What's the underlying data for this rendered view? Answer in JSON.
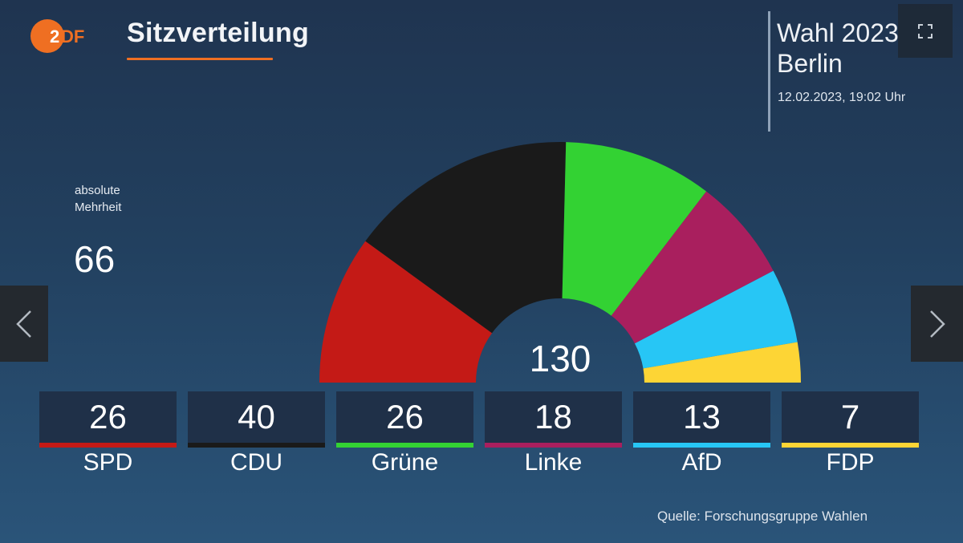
{
  "header": {
    "logo": "ZDF",
    "title": "Sitzverteilung",
    "accent_color": "#ef6f22"
  },
  "info": {
    "election": "Wahl 2023",
    "region": "Berlin",
    "timestamp": "12.02.2023, 19:02 Uhr"
  },
  "controls": {
    "fullscreen_icon": "fullscreen-icon",
    "prev_icon": "chevron-left-icon",
    "next_icon": "chevron-right-icon"
  },
  "majority": {
    "label_line1": "absolute",
    "label_line2": "Mehrheit",
    "value": "66"
  },
  "total_seats": "130",
  "parties": [
    {
      "name": "SPD",
      "seats": "26",
      "color": "#c41a16"
    },
    {
      "name": "CDU",
      "seats": "40",
      "color": "#1a1a1a"
    },
    {
      "name": "Grüne",
      "seats": "26",
      "color": "#33d233"
    },
    {
      "name": "Linke",
      "seats": "18",
      "color": "#a91f5e"
    },
    {
      "name": "AfD",
      "seats": "13",
      "color": "#27c6f5"
    },
    {
      "name": "FDP",
      "seats": "7",
      "color": "#fdd535"
    }
  ],
  "source": "Quelle: Forschungsgruppe Wahlen",
  "chart_data": {
    "type": "pie",
    "subtype": "semicircle-donut (parliament seat distribution)",
    "title": "Sitzverteilung",
    "subtitle": "Wahl 2023 Berlin, 12.02.2023, 19:02 Uhr",
    "categories": [
      "SPD",
      "CDU",
      "Grüne",
      "Linke",
      "AfD",
      "FDP"
    ],
    "values": [
      26,
      40,
      26,
      18,
      13,
      7
    ],
    "colors": [
      "#c41a16",
      "#1a1a1a",
      "#33d233",
      "#a91f5e",
      "#27c6f5",
      "#fdd535"
    ],
    "total": 130,
    "annotations": [
      "absolute Mehrheit 66"
    ],
    "source": "Quelle: Forschungsgruppe Wahlen"
  }
}
